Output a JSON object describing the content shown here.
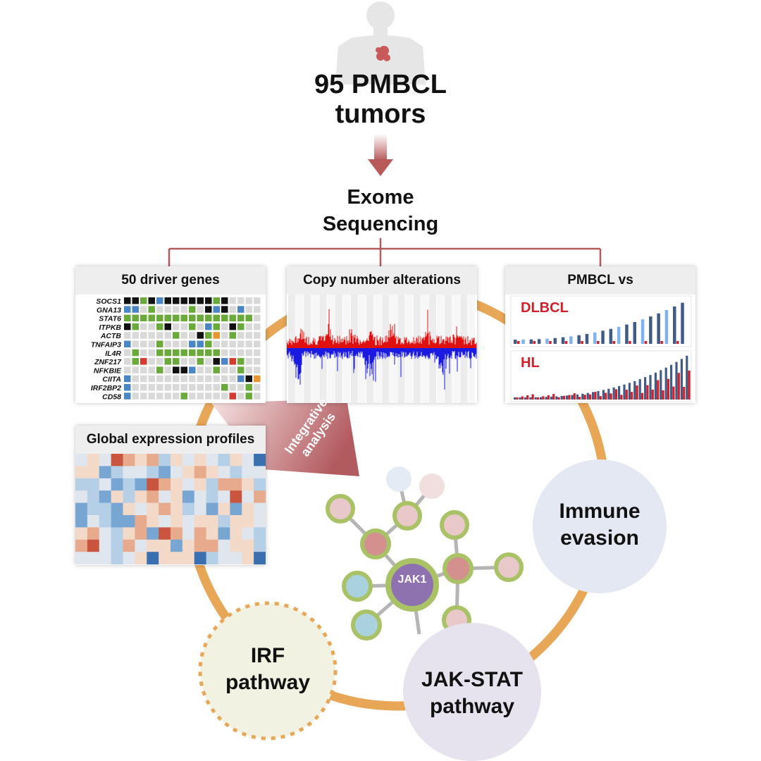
{
  "header": {
    "tumor_title_line1": "95 PMBCL",
    "tumor_title_line2": "tumors",
    "sequencing_line1": "Exome",
    "sequencing_line2": "Sequencing"
  },
  "panels": {
    "driver_genes": {
      "title": "50 driver genes",
      "genes": [
        "SOCS1",
        "GNA13",
        "STAT6",
        "ITPKB",
        "ACTB",
        "TNFAIP3",
        "IL4R",
        "ZNF217",
        "NFKBIE",
        "CIITA",
        "IRF2BP2",
        "CD58"
      ],
      "colors": {
        "empty": "#d9d9d9",
        "black": "#111111",
        "green": "#6aaa3a",
        "blue": "#4a86c5",
        "red": "#d43a2f",
        "orange": "#e8952f"
      }
    },
    "copy_number": {
      "title": "Copy number alterations",
      "gain_color": "#e01010",
      "loss_color": "#1a1ae0"
    },
    "comparison": {
      "title": "PMBCL vs",
      "chart1_label": "DLBCL",
      "chart2_label": "HL",
      "label_color": "#d0202a"
    },
    "expression": {
      "title": "Global expression profiles"
    }
  },
  "integrative": {
    "line1": "Integrative",
    "line2": "analysis"
  },
  "network": {
    "center_node": "JAK1",
    "center_color": "#8e72b0",
    "ring_color": "#a9c266"
  },
  "cycle": {
    "ring_color": "#e8a657",
    "immune": {
      "line1": "Immune",
      "line2": "evasion",
      "color": "#e3e8f2"
    },
    "jakstat": {
      "line1": "JAK-STAT",
      "line2": "pathway",
      "color": "#e6e3ef"
    },
    "irf": {
      "line1": "IRF",
      "line2": "pathway",
      "color": "#f2f2e2"
    }
  }
}
